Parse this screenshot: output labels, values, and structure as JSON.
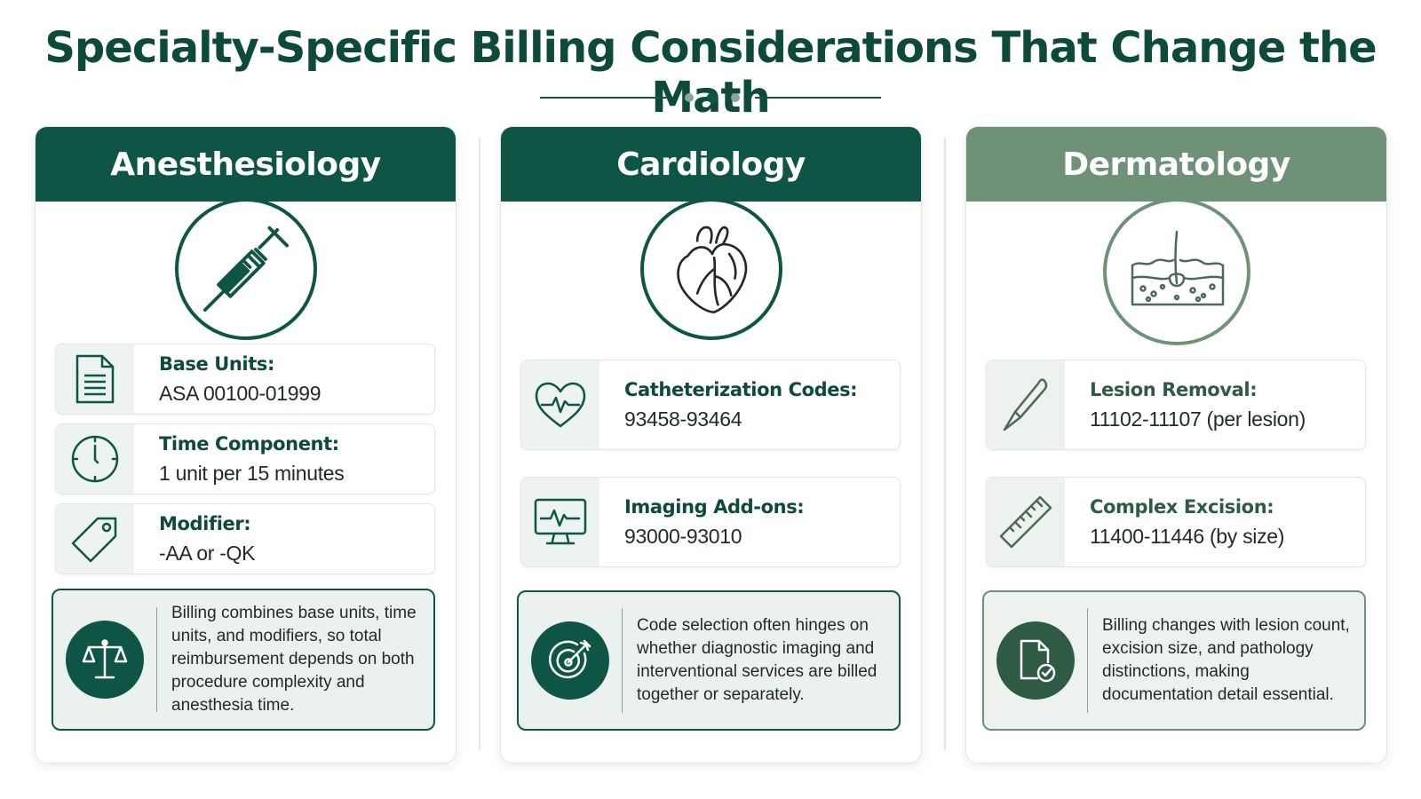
{
  "title": "Specialty-Specific Billing Considerations That Change the Math",
  "colors": {
    "primary": "#0f5545",
    "secondary": "#6f9178",
    "panel": "#ecf3f0"
  },
  "cards": [
    {
      "name": "Anesthesiology",
      "emblem_icon": "syringe-icon",
      "items": [
        {
          "icon": "document-icon",
          "label": "Base Units:",
          "value": "ASA 00100-01999"
        },
        {
          "icon": "clock-icon",
          "label": "Time Component:",
          "value": "1 unit per 15 minutes"
        },
        {
          "icon": "tag-icon",
          "label": "Modifier:",
          "value": "-AA or -QK"
        }
      ],
      "note_icon": "scales-icon",
      "note_lines": [
        "Billing combines base units, time",
        "units, and modifiers, so total",
        "reimbursement depends on both",
        "procedure complexity and",
        "anesthesia time."
      ]
    },
    {
      "name": "Cardiology",
      "emblem_icon": "heart-icon",
      "items": [
        {
          "icon": "heart-pulse-icon",
          "label": "Catheterization Codes:",
          "value": "93458-93464"
        },
        {
          "icon": "monitor-pulse-icon",
          "label": "Imaging Add-ons:",
          "value": "93000-93010"
        }
      ],
      "note_icon": "target-icon",
      "note_lines": [
        "Code selection often hinges on",
        "whether diagnostic imaging and",
        "interventional services are billed",
        "together or separately."
      ]
    },
    {
      "name": "Dermatology",
      "emblem_icon": "skin-layers-icon",
      "items": [
        {
          "icon": "scalpel-icon",
          "label": "Lesion Removal:",
          "value": "11102-11107 (per lesion)"
        },
        {
          "icon": "ruler-icon",
          "label": "Complex Excision:",
          "value": "11400-11446 (by size)"
        }
      ],
      "note_icon": "document-check-icon",
      "note_lines": [
        "Billing changes with lesion count,",
        "excision size, and pathology",
        "distinctions, making",
        "documentation detail essential."
      ]
    }
  ]
}
